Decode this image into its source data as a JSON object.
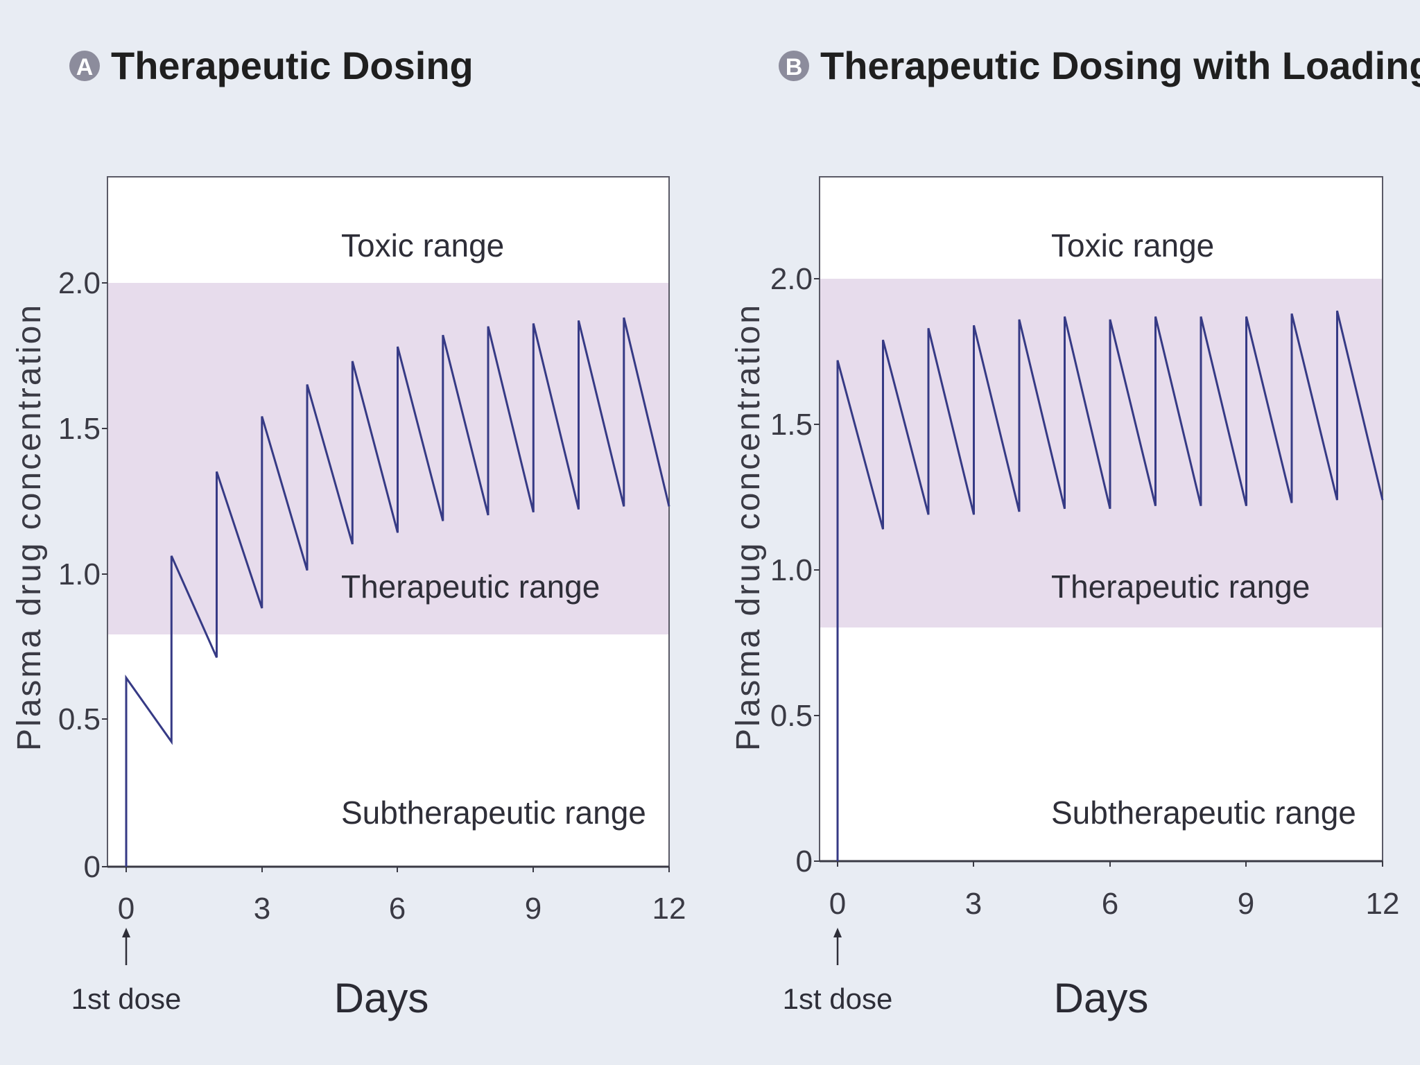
{
  "chart_data": [
    {
      "id": "A",
      "type": "line",
      "title": "Therapeutic Dosing",
      "badge": "A",
      "xlabel": "Days",
      "ylabel": "Plasma drug concentration",
      "xlim": [
        0,
        12
      ],
      "ylim": [
        0,
        2.4
      ],
      "xticks": [
        0,
        3,
        6,
        9,
        12
      ],
      "xtick_labels": [
        "0",
        "3",
        "6",
        "9",
        "12"
      ],
      "yticks": [
        0,
        0.5,
        1.0,
        1.5,
        2.0
      ],
      "ytick_labels": [
        "0",
        "0.5",
        "1.0",
        "1.5",
        "2.0"
      ],
      "therapeutic_band": [
        0.8,
        2.0
      ],
      "range_labels": {
        "toxic": "Toxic range",
        "therapeutic": "Therapeutic range",
        "subtherapeutic": "Subtherapeutic range"
      },
      "annotation": "1st dose",
      "series": [
        {
          "name": "Plasma concentration",
          "points": [
            [
              0,
              0
            ],
            [
              0,
              0.65
            ],
            [
              1,
              0.43
            ],
            [
              1,
              1.07
            ],
            [
              2,
              0.72
            ],
            [
              2,
              1.36
            ],
            [
              3,
              0.89
            ],
            [
              3,
              1.55
            ],
            [
              4,
              1.02
            ],
            [
              4,
              1.66
            ],
            [
              5,
              1.11
            ],
            [
              5,
              1.74
            ],
            [
              6,
              1.15
            ],
            [
              6,
              1.79
            ],
            [
              7,
              1.19
            ],
            [
              7,
              1.83
            ],
            [
              8,
              1.21
            ],
            [
              8,
              1.86
            ],
            [
              9,
              1.22
            ],
            [
              9,
              1.87
            ],
            [
              10,
              1.23
            ],
            [
              10,
              1.88
            ],
            [
              11,
              1.24
            ],
            [
              11,
              1.89
            ],
            [
              12,
              1.24
            ]
          ]
        }
      ]
    },
    {
      "id": "B",
      "type": "line",
      "title": "Therapeutic Dosing with Loading Dose",
      "badge": "B",
      "xlabel": "Days",
      "ylabel": "Plasma drug concentration",
      "xlim": [
        0,
        12
      ],
      "ylim": [
        0,
        2.4
      ],
      "xticks": [
        0,
        3,
        6,
        9,
        12
      ],
      "xtick_labels": [
        "0",
        "3",
        "6",
        "9",
        "12"
      ],
      "yticks": [
        0,
        0.5,
        1.0,
        1.5,
        2.0
      ],
      "ytick_labels": [
        "0",
        "0.5",
        "1.0",
        "1.5",
        "2.0"
      ],
      "therapeutic_band": [
        0.8,
        2.0
      ],
      "range_labels": {
        "toxic": "Toxic range",
        "therapeutic": "Therapeutic range",
        "subtherapeutic": "Subtherapeutic range"
      },
      "annotation": "1st dose",
      "series": [
        {
          "name": "Plasma concentration",
          "points": [
            [
              0,
              0
            ],
            [
              0,
              1.72
            ],
            [
              1,
              1.14
            ],
            [
              1,
              1.79
            ],
            [
              2,
              1.19
            ],
            [
              2,
              1.83
            ],
            [
              3,
              1.19
            ],
            [
              3,
              1.84
            ],
            [
              4,
              1.2
            ],
            [
              4,
              1.86
            ],
            [
              5,
              1.21
            ],
            [
              5,
              1.87
            ],
            [
              6,
              1.21
            ],
            [
              6,
              1.86
            ],
            [
              7,
              1.22
            ],
            [
              7,
              1.87
            ],
            [
              8,
              1.22
            ],
            [
              8,
              1.87
            ],
            [
              9,
              1.22
            ],
            [
              9,
              1.87
            ],
            [
              10,
              1.23
            ],
            [
              10,
              1.88
            ],
            [
              11,
              1.24
            ],
            [
              11,
              1.89
            ],
            [
              12,
              1.24
            ]
          ]
        }
      ]
    }
  ]
}
